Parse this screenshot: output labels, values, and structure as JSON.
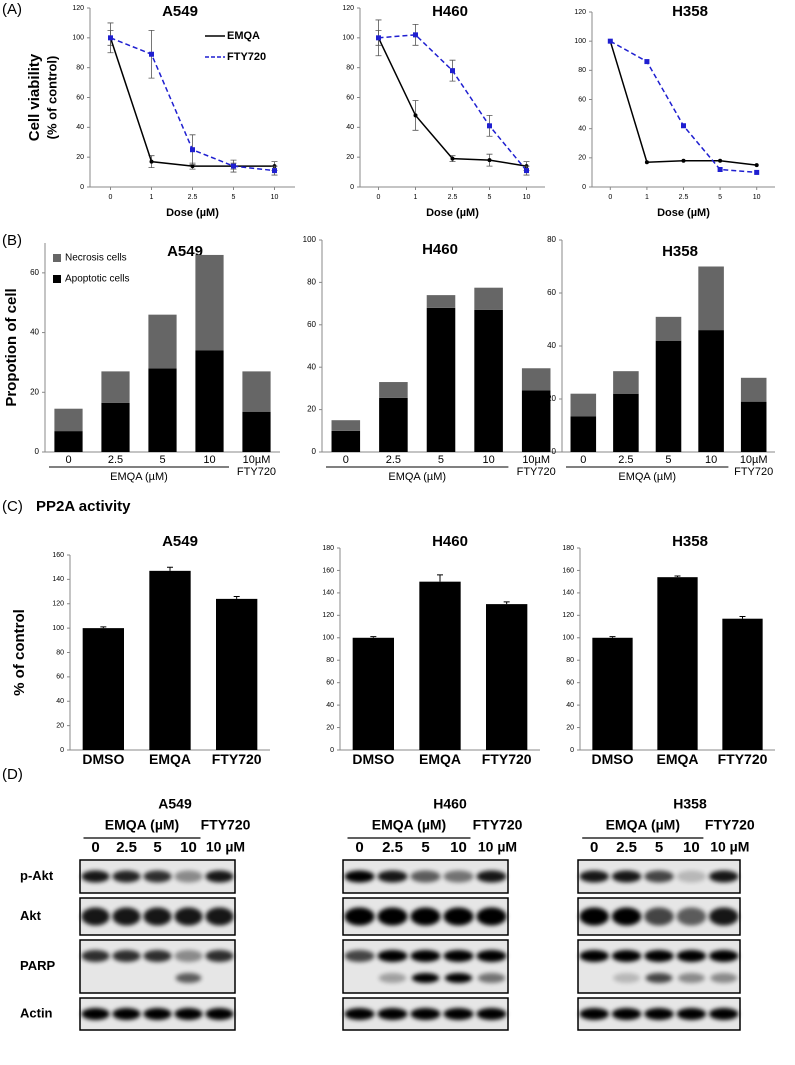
{
  "panels": [
    "(A)",
    "(B)",
    "(C)",
    "(D)"
  ],
  "section_title": "PP2A activity",
  "chart_data": [
    {
      "type": "line",
      "title": "A549",
      "xlabel": "Dose (µM)",
      "ylabel": [
        "Cell viability",
        "(% of control)"
      ],
      "categories": [
        "0",
        "1",
        "2.5",
        "5",
        "10"
      ],
      "ylim": [
        0,
        120
      ],
      "yticks": [
        0,
        20,
        40,
        60,
        80,
        100,
        120
      ],
      "legend": "upper right",
      "series": [
        {
          "name": "EMQA",
          "color": "#000000",
          "dashed": false,
          "marker": "circle",
          "values": [
            100,
            17,
            14,
            14,
            14
          ],
          "errors": [
            5,
            4,
            2,
            2,
            3
          ]
        },
        {
          "name": "FTY720",
          "color": "#1f1fd0",
          "dashed": true,
          "marker": "square",
          "values": [
            100,
            89,
            25,
            14,
            11
          ],
          "errors": [
            10,
            16,
            10,
            4,
            3
          ]
        }
      ]
    },
    {
      "type": "line",
      "title": "H460",
      "xlabel": "Dose (µM)",
      "categories": [
        "0",
        "1",
        "2.5",
        "5",
        "10"
      ],
      "ylim": [
        0,
        120
      ],
      "yticks": [
        0,
        20,
        40,
        60,
        80,
        100,
        120
      ],
      "series": [
        {
          "color": "#000000",
          "dashed": false,
          "marker": "circle",
          "values": [
            100,
            48,
            19,
            18,
            14
          ],
          "errors": [
            12,
            10,
            2,
            4,
            3
          ]
        },
        {
          "color": "#1f1fd0",
          "dashed": true,
          "marker": "square",
          "values": [
            100,
            102,
            78,
            41,
            11
          ],
          "errors": [
            5,
            7,
            7,
            7,
            3
          ]
        }
      ]
    },
    {
      "type": "line",
      "title": "H358",
      "xlabel": "Dose (µM)",
      "categories": [
        "0",
        "1",
        "2.5",
        "5",
        "10"
      ],
      "ylim": [
        0,
        120
      ],
      "yticks": [
        0,
        20,
        40,
        60,
        80,
        100,
        120
      ],
      "series": [
        {
          "color": "#000000",
          "dashed": false,
          "marker": "circle",
          "values": [
            100,
            17,
            18,
            18,
            15
          ]
        },
        {
          "color": "#1f1fd0",
          "dashed": true,
          "marker": "square",
          "values": [
            100,
            86,
            42,
            12,
            10
          ]
        }
      ]
    },
    {
      "type": "bar",
      "stacked": true,
      "title": "A549",
      "ylabel": "Propotion of cell",
      "group_label": "EMQA (µM)",
      "categories": [
        "0",
        "2.5",
        "5",
        "10",
        "10µM FTY720"
      ],
      "ylim": [
        0,
        70
      ],
      "yticks": [
        0,
        20,
        40,
        60
      ],
      "legend": "upper left",
      "series": [
        {
          "name": "Apoptotic cells",
          "color": "#000000",
          "values": [
            7,
            16.5,
            28,
            34,
            13.5
          ]
        },
        {
          "name": "Necrosis cells",
          "color": "#666666",
          "values": [
            7.5,
            10.5,
            18,
            32,
            13.5
          ]
        }
      ]
    },
    {
      "type": "bar",
      "stacked": true,
      "title": "H460",
      "group_label": "EMQA (µM)",
      "categories": [
        "0",
        "2.5",
        "5",
        "10",
        "10µM FTY720"
      ],
      "ylim": [
        0,
        100
      ],
      "yticks": [
        0,
        20,
        40,
        60,
        80,
        100
      ],
      "series": [
        {
          "color": "#000000",
          "values": [
            10,
            25.5,
            68,
            67,
            29
          ]
        },
        {
          "color": "#666666",
          "values": [
            5,
            7.5,
            6,
            10.5,
            10.5
          ]
        }
      ]
    },
    {
      "type": "bar",
      "stacked": true,
      "title": "H358",
      "group_label": "EMQA (µM)",
      "categories": [
        "0",
        "2.5",
        "5",
        "10",
        "10µM FTY720"
      ],
      "ylim": [
        0,
        80
      ],
      "yticks": [
        0,
        20,
        40,
        60,
        80
      ],
      "series": [
        {
          "color": "#000000",
          "values": [
            13.5,
            22,
            42,
            46,
            19
          ]
        },
        {
          "color": "#666666",
          "values": [
            8.5,
            8.5,
            9,
            24,
            9
          ]
        }
      ]
    },
    {
      "type": "bar",
      "title": "A549",
      "ylabel": "% of control",
      "categories": [
        "DMSO",
        "EMQA",
        "FTY720"
      ],
      "ylim": [
        0,
        160
      ],
      "yticks": [
        0,
        20,
        40,
        60,
        80,
        100,
        120,
        140,
        160
      ],
      "series": [
        {
          "color": "#000000",
          "values": [
            100,
            147,
            124
          ],
          "errors": [
            1,
            3,
            2
          ]
        }
      ]
    },
    {
      "type": "bar",
      "title": "H460",
      "categories": [
        "DMSO",
        "EMQA",
        "FTY720"
      ],
      "ylim": [
        0,
        180
      ],
      "yticks": [
        0,
        20,
        40,
        60,
        80,
        100,
        120,
        140,
        160,
        180
      ],
      "series": [
        {
          "color": "#000000",
          "values": [
            100,
            150,
            130
          ],
          "errors": [
            1,
            6,
            2
          ]
        }
      ]
    },
    {
      "type": "bar",
      "title": "H358",
      "categories": [
        "DMSO",
        "EMQA",
        "FTY720"
      ],
      "ylim": [
        0,
        180
      ],
      "yticks": [
        0,
        20,
        40,
        60,
        80,
        100,
        120,
        140,
        160,
        180
      ],
      "series": [
        {
          "color": "#000000",
          "values": [
            100,
            154,
            117
          ],
          "errors": [
            1,
            1,
            2
          ]
        }
      ]
    }
  ],
  "blots": {
    "titles": [
      "A549",
      "H460",
      "H358"
    ],
    "group": "EMQA (µM)",
    "lanes": [
      "0",
      "2.5",
      "5",
      "10"
    ],
    "control": [
      "FTY720",
      "10 µM"
    ],
    "rows": [
      "p-Akt",
      "Akt",
      "PARP",
      "Actin"
    ]
  }
}
